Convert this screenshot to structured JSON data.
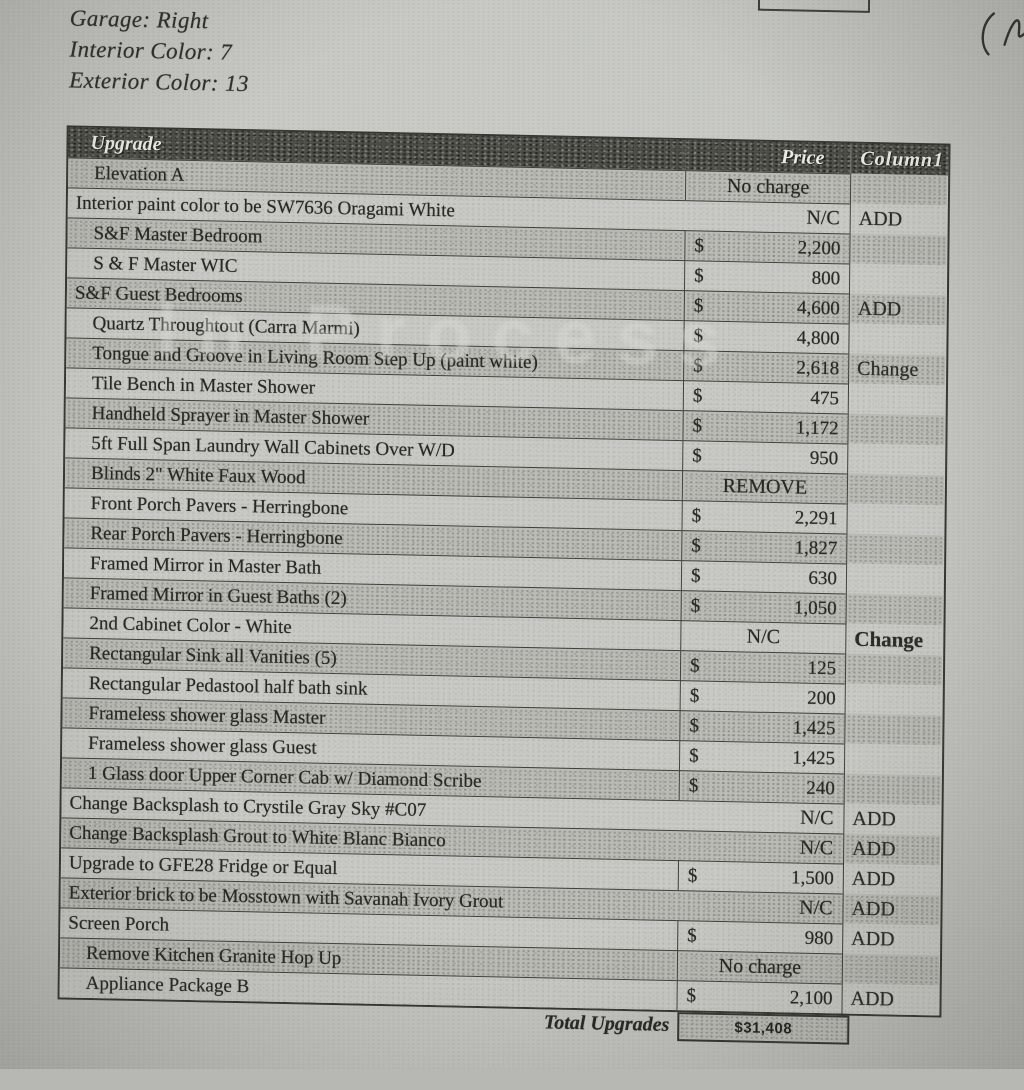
{
  "document": {
    "top_labels": [
      "Garage: Right",
      "Interior Color: 7",
      "Exterior Color: 13"
    ],
    "watermark": "In Process"
  },
  "table": {
    "headers": {
      "upgrade": "Upgrade",
      "price": "Price",
      "column1": "Column1"
    },
    "rows": [
      {
        "upgrade": "Elevation A",
        "price_type": "center",
        "price": "No charge",
        "column1": "",
        "shaded": true,
        "indent": true
      },
      {
        "upgrade": "Interior paint color to be SW7636 Oragami White",
        "price_type": "merged",
        "price": "N/C",
        "column1": "ADD",
        "shaded": false,
        "indent": false
      },
      {
        "upgrade": "S&F Master Bedroom",
        "price_type": "dollar",
        "price": "2,200",
        "column1": "",
        "shaded": true,
        "indent": true
      },
      {
        "upgrade": "S & F Master WIC",
        "price_type": "dollar",
        "price": "800",
        "column1": "",
        "shaded": false,
        "indent": true
      },
      {
        "upgrade": "S&F Guest Bedrooms",
        "price_type": "dollar",
        "price": "4,600",
        "column1": "ADD",
        "shaded": true,
        "indent": false
      },
      {
        "upgrade": "Quartz Throughtout (Carra Marmi)",
        "price_type": "dollar",
        "price": "4,800",
        "column1": "",
        "shaded": false,
        "indent": true
      },
      {
        "upgrade": "Tongue and Groove in Living Room Step Up (paint white)",
        "price_type": "dollar",
        "price": "2,618",
        "column1": "Change",
        "shaded": true,
        "indent": true
      },
      {
        "upgrade": "Tile Bench in Master Shower",
        "price_type": "dollar",
        "price": "475",
        "column1": "",
        "shaded": false,
        "indent": true
      },
      {
        "upgrade": "Handheld Sprayer in Master Shower",
        "price_type": "dollar",
        "price": "1,172",
        "column1": "",
        "shaded": true,
        "indent": true
      },
      {
        "upgrade": "5ft Full Span Laundry Wall Cabinets Over W/D",
        "price_type": "dollar",
        "price": "950",
        "column1": "",
        "shaded": false,
        "indent": true
      },
      {
        "upgrade": "Blinds 2\" White Faux Wood",
        "price_type": "center",
        "price": "REMOVE",
        "column1": "",
        "shaded": true,
        "indent": true
      },
      {
        "upgrade": "Front Porch Pavers - Herringbone",
        "price_type": "dollar",
        "price": "2,291",
        "column1": "",
        "shaded": false,
        "indent": true
      },
      {
        "upgrade": "Rear Porch Pavers - Herringbone",
        "price_type": "dollar",
        "price": "1,827",
        "column1": "",
        "shaded": true,
        "indent": true
      },
      {
        "upgrade": "Framed Mirror in Master Bath",
        "price_type": "dollar",
        "price": "630",
        "column1": "",
        "shaded": false,
        "indent": true
      },
      {
        "upgrade": "Framed Mirror in Guest Baths (2)",
        "price_type": "dollar",
        "price": "1,050",
        "column1": "",
        "shaded": true,
        "indent": true
      },
      {
        "upgrade": "2nd Cabinet Color - White",
        "price_type": "center",
        "price": "N/C",
        "column1": "Change",
        "column1_bold": true,
        "shaded": false,
        "indent": true
      },
      {
        "upgrade": "Rectangular Sink all Vanities (5)",
        "price_type": "dollar",
        "price": "125",
        "column1": "",
        "shaded": true,
        "indent": true
      },
      {
        "upgrade": "Rectangular Pedastool half bath sink",
        "price_type": "dollar",
        "price": "200",
        "column1": "",
        "shaded": false,
        "indent": true
      },
      {
        "upgrade": "Frameless shower glass Master",
        "price_type": "dollar",
        "price": "1,425",
        "column1": "",
        "shaded": true,
        "indent": true
      },
      {
        "upgrade": "Frameless shower glass Guest",
        "price_type": "dollar",
        "price": "1,425",
        "column1": "",
        "shaded": false,
        "indent": true
      },
      {
        "upgrade": "1 Glass door Upper Corner Cab w/ Diamond Scribe",
        "price_type": "dollar",
        "price": "240",
        "column1": "",
        "shaded": true,
        "indent": true
      },
      {
        "upgrade": "Change Backsplash to Crystile Gray Sky #C07",
        "price_type": "merged",
        "price": "N/C",
        "column1": "ADD",
        "shaded": false,
        "indent": false
      },
      {
        "upgrade": "Change Backsplash Grout to White Blanc Bianco",
        "price_type": "merged",
        "price": "N/C",
        "column1": "ADD",
        "shaded": true,
        "indent": false
      },
      {
        "upgrade": "Upgrade to GFE28 Fridge or Equal",
        "price_type": "dollar",
        "price": "1,500",
        "column1": "ADD",
        "shaded": false,
        "indent": false
      },
      {
        "upgrade": "Exterior brick to be Mosstown with Savanah Ivory Grout",
        "price_type": "merged",
        "price": "N/C",
        "column1": "ADD",
        "shaded": true,
        "indent": false
      },
      {
        "upgrade": "Screen Porch",
        "price_type": "dollar",
        "price": "980",
        "column1": "ADD",
        "shaded": false,
        "indent": false
      },
      {
        "upgrade": "Remove Kitchen Granite Hop Up",
        "price_type": "center",
        "price": "No charge",
        "column1": "",
        "shaded": true,
        "indent": true
      },
      {
        "upgrade": "Appliance Package B",
        "price_type": "dollar",
        "price": "2,100",
        "column1": "ADD",
        "shaded": false,
        "indent": true
      }
    ],
    "currency_symbol": "$",
    "total": {
      "label": "Total Upgrades",
      "value": "$31,408"
    }
  },
  "annotations": {
    "handwriting_mark": "cursive-pen-mark",
    "partial_box": "cut-off-form-box"
  },
  "colors": {
    "paper": "#c6c7c2",
    "ink": "#24241f",
    "header_bg": "#4a4a44",
    "header_text": "#ecece6",
    "row_shaded": "#b9bab4",
    "row_light": "#c7c8c3",
    "border": "#33332e",
    "watermark": "#dadbd6"
  }
}
